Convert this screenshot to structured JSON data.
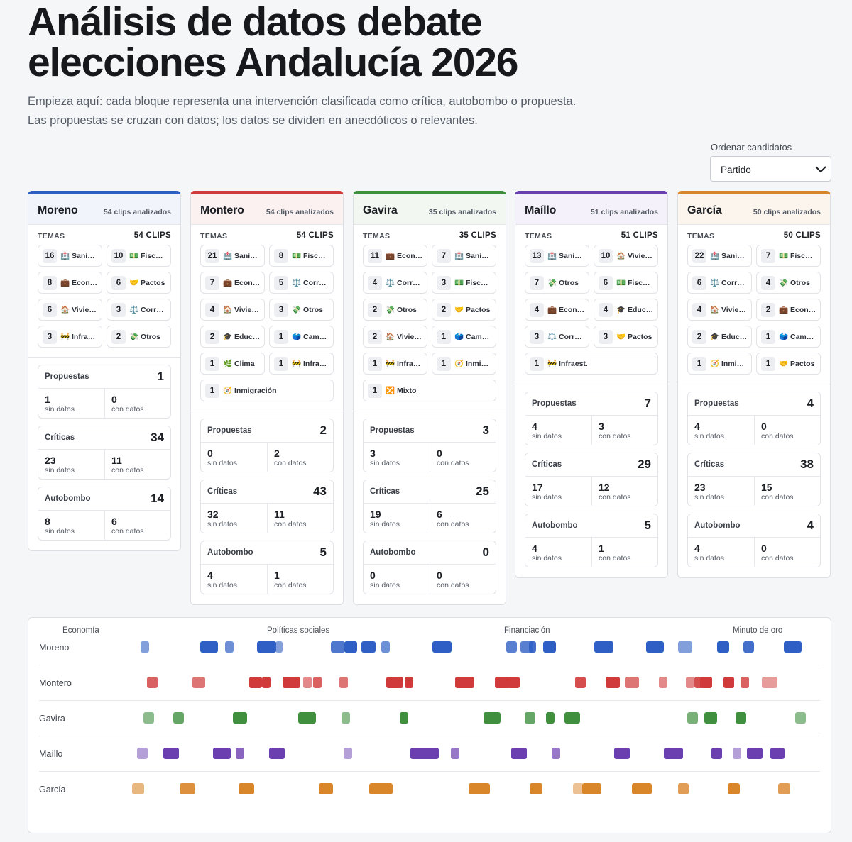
{
  "title": "Análisis de datos debate elecciones Andalucía 2026",
  "intro": "Empieza aquí: cada bloque representa una intervención clasificada como crítica, autobombo o propuesta. Las propuestas se cruzan con datos; los datos se dividen en anecdóticos o relevantes.",
  "sort": {
    "label": "Ordenar candidatos",
    "value": "Partido"
  },
  "labels": {
    "temas": "TEMAS",
    "propuestas": "Propuestas",
    "criticas": "Críticas",
    "autobombo": "Autobombo",
    "sin_datos": "sin datos",
    "con_datos": "con datos"
  },
  "candidates": [
    {
      "name": "Moreno",
      "color": "#2f5fc4",
      "light": "#f1f4fb",
      "clips_label": "54 clips analizados",
      "temas_count": "54 CLIPS",
      "topics": [
        {
          "n": "16",
          "t": "🏥 Sani…"
        },
        {
          "n": "10",
          "t": "💵 Fisc…"
        },
        {
          "n": "8",
          "t": "💼 Econ…"
        },
        {
          "n": "6",
          "t": "🤝 Pactos"
        },
        {
          "n": "6",
          "t": "🏠 Vivie…"
        },
        {
          "n": "3",
          "t": "⚖️ Corr…"
        },
        {
          "n": "3",
          "t": "🚧 Infra…"
        },
        {
          "n": "2",
          "t": "💸 Otros"
        }
      ],
      "stats": {
        "propuestas": {
          "total": "1",
          "sin": "1",
          "con": "0"
        },
        "criticas": {
          "total": "34",
          "sin": "23",
          "con": "11"
        },
        "autobombo": {
          "total": "14",
          "sin": "8",
          "con": "6"
        }
      }
    },
    {
      "name": "Montero",
      "color": "#d03a3a",
      "light": "#fbf1f1",
      "clips_label": "54 clips analizados",
      "temas_count": "54 CLIPS",
      "topics": [
        {
          "n": "21",
          "t": "🏥 Sani…"
        },
        {
          "n": "8",
          "t": "💵 Fisc…"
        },
        {
          "n": "7",
          "t": "💼 Econ…"
        },
        {
          "n": "5",
          "t": "⚖️ Corr…"
        },
        {
          "n": "4",
          "t": "🏠 Vivie…"
        },
        {
          "n": "3",
          "t": "💸 Otros"
        },
        {
          "n": "2",
          "t": "🎓 Educ…"
        },
        {
          "n": "1",
          "t": "🗳️ Cam…"
        },
        {
          "n": "1",
          "t": "🌿 Clima"
        },
        {
          "n": "1",
          "t": "🚧 Infra…"
        },
        {
          "n": "1",
          "t": "🧭 Inmigración",
          "wide": true
        }
      ],
      "stats": {
        "propuestas": {
          "total": "2",
          "sin": "0",
          "con": "2"
        },
        "criticas": {
          "total": "43",
          "sin": "32",
          "con": "11"
        },
        "autobombo": {
          "total": "5",
          "sin": "4",
          "con": "1"
        }
      }
    },
    {
      "name": "Gavira",
      "color": "#3f8f3f",
      "light": "#f2f8f1",
      "clips_label": "35 clips analizados",
      "temas_count": "35 CLIPS",
      "topics": [
        {
          "n": "11",
          "t": "💼 Econ…"
        },
        {
          "n": "7",
          "t": "🏥 Sani…"
        },
        {
          "n": "4",
          "t": "⚖️ Corr…"
        },
        {
          "n": "3",
          "t": "💵 Fisc…"
        },
        {
          "n": "2",
          "t": "💸 Otros"
        },
        {
          "n": "2",
          "t": "🤝 Pactos"
        },
        {
          "n": "2",
          "t": "🏠 Vivie…"
        },
        {
          "n": "1",
          "t": "🗳️ Cam…"
        },
        {
          "n": "1",
          "t": "🚧 Infra…"
        },
        {
          "n": "1",
          "t": "🧭 Inmi…"
        },
        {
          "n": "1",
          "t": "🔀 Mixto",
          "wide": true
        }
      ],
      "stats": {
        "propuestas": {
          "total": "3",
          "sin": "3",
          "con": "0"
        },
        "criticas": {
          "total": "25",
          "sin": "19",
          "con": "6"
        },
        "autobombo": {
          "total": "0",
          "sin": "0",
          "con": "0"
        }
      }
    },
    {
      "name": "Maíllo",
      "color": "#6b3fb0",
      "light": "#f5f1fa",
      "clips_label": "51 clips analizados",
      "temas_count": "51 CLIPS",
      "topics": [
        {
          "n": "13",
          "t": "🏥 Sani…"
        },
        {
          "n": "10",
          "t": "🏠 Vivie…"
        },
        {
          "n": "7",
          "t": "💸 Otros"
        },
        {
          "n": "6",
          "t": "💵 Fisc…"
        },
        {
          "n": "4",
          "t": "💼 Econ…"
        },
        {
          "n": "4",
          "t": "🎓 Educ…"
        },
        {
          "n": "3",
          "t": "⚖️ Corr…"
        },
        {
          "n": "3",
          "t": "🤝 Pactos"
        },
        {
          "n": "1",
          "t": "🚧 Infraest.",
          "wide": true
        }
      ],
      "stats": {
        "propuestas": {
          "total": "7",
          "sin": "4",
          "con": "3"
        },
        "criticas": {
          "total": "29",
          "sin": "17",
          "con": "12"
        },
        "autobombo": {
          "total": "5",
          "sin": "4",
          "con": "1"
        }
      }
    },
    {
      "name": "García",
      "color": "#d9852a",
      "light": "#fcf5ee",
      "clips_label": "50 clips analizados",
      "temas_count": "50 CLIPS",
      "topics": [
        {
          "n": "22",
          "t": "🏥 Sani…"
        },
        {
          "n": "7",
          "t": "💵 Fisc…"
        },
        {
          "n": "6",
          "t": "⚖️ Corr…"
        },
        {
          "n": "4",
          "t": "💸 Otros"
        },
        {
          "n": "4",
          "t": "🏠 Vivie…"
        },
        {
          "n": "2",
          "t": "💼 Econ…"
        },
        {
          "n": "2",
          "t": "🎓 Educ…"
        },
        {
          "n": "1",
          "t": "🗳️ Cam…"
        },
        {
          "n": "1",
          "t": "🧭 Inmi…"
        },
        {
          "n": "1",
          "t": "🤝 Pactos"
        }
      ],
      "stats": {
        "propuestas": {
          "total": "4",
          "sin": "4",
          "con": "0"
        },
        "criticas": {
          "total": "38",
          "sin": "23",
          "con": "15"
        },
        "autobombo": {
          "total": "4",
          "sin": "4",
          "con": "0"
        }
      }
    }
  ],
  "timeline": {
    "sections": [
      "Economía",
      "Políticas sociales",
      "Financiación",
      "Minuto de oro"
    ],
    "rows": [
      "Moreno",
      "Montero",
      "Gavira",
      "Maíllo",
      "García"
    ]
  }
}
